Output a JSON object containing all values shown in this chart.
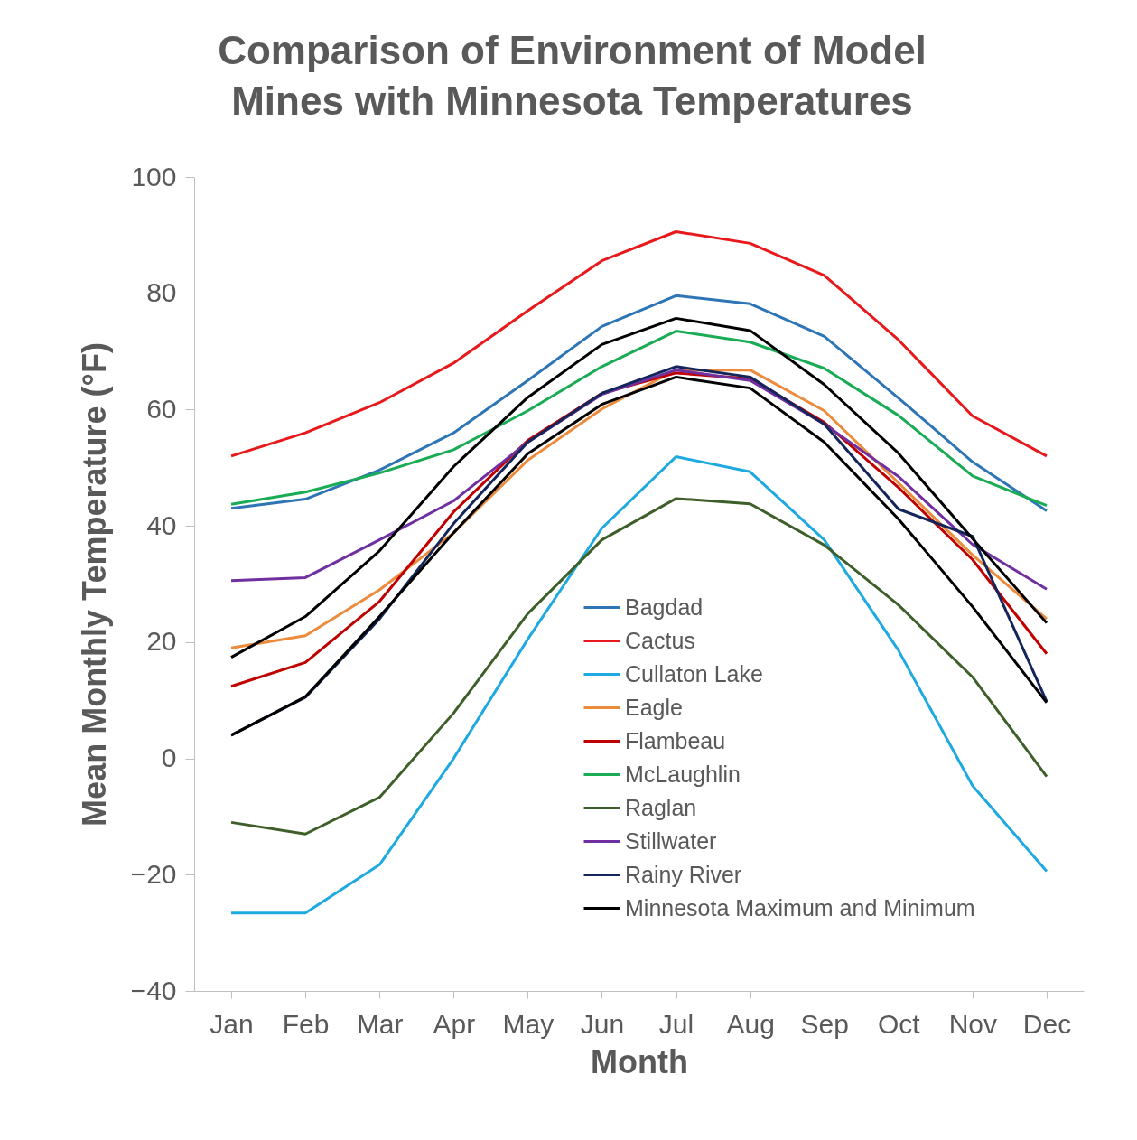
{
  "chart_data": {
    "type": "line",
    "title": "Comparison of Environment of Model\nMines with Minnesota Temperatures",
    "xlabel": "Month",
    "ylabel": "Mean Monthly Temperature (°F)",
    "categories": [
      "Jan",
      "Feb",
      "Mar",
      "Apr",
      "May",
      "Jun",
      "Jul",
      "Aug",
      "Sep",
      "Oct",
      "Nov",
      "Dec"
    ],
    "ylim": [
      -40,
      100
    ],
    "yticks": [
      -40,
      -20,
      0,
      20,
      40,
      60,
      80,
      100
    ],
    "grid": false,
    "legend": "bottom right",
    "marker": "none",
    "line_style": "solid",
    "series": [
      {
        "name": "Bagdad",
        "color": "#2e75b6",
        "values": [
          43,
          44.6,
          49.6,
          56,
          65,
          74.3,
          79.6,
          78.2,
          72.6,
          62,
          51,
          42.6
        ]
      },
      {
        "name": "Cactus",
        "color": "#e8191c",
        "values": [
          52,
          56,
          61.2,
          68,
          77,
          85.6,
          90.6,
          88.6,
          83.1,
          72,
          58.9,
          52
        ]
      },
      {
        "name": "Cullaton Lake",
        "color": "#1fa9e1",
        "values": [
          -26.6,
          -26.6,
          -18.3,
          0,
          20.5,
          39.6,
          51.9,
          49.3,
          37.6,
          18.6,
          -4.7,
          -19.4
        ]
      },
      {
        "name": "Eagle",
        "color": "#ed8b3c",
        "values": [
          19,
          21.1,
          29,
          38.8,
          51.3,
          60.1,
          66.8,
          66.8,
          59.8,
          47.4,
          35,
          24
        ]
      },
      {
        "name": "Flambeau",
        "color": "#c00000",
        "values": [
          12.4,
          16.5,
          27,
          42.4,
          54.7,
          62.8,
          66.3,
          65.3,
          57.8,
          46.6,
          34.2,
          18
        ]
      },
      {
        "name": "McLaughlin",
        "color": "#1aab55",
        "values": [
          43.7,
          45.8,
          49.1,
          53.1,
          59.8,
          67.4,
          73.5,
          71.6,
          67.1,
          59,
          48.6,
          43.5
        ]
      },
      {
        "name": "Raglan",
        "color": "#3e5f2a",
        "values": [
          -11,
          -13,
          -6.7,
          7.8,
          24.9,
          37.6,
          44.7,
          43.8,
          36.7,
          26.4,
          14,
          -3.1
        ]
      },
      {
        "name": "Stillwater",
        "color": "#7030a0",
        "values": [
          30.6,
          31.1,
          37.6,
          44.3,
          54.4,
          62.6,
          66.8,
          65,
          57.5,
          48.5,
          36.8,
          29.1
        ]
      },
      {
        "name": "Rainy River",
        "color": "#13255a",
        "values": [
          4,
          10.5,
          24,
          40.4,
          54.4,
          62.8,
          67.4,
          65.6,
          57.5,
          42.9,
          38.2,
          9.8
        ]
      },
      {
        "name": "Minnesota Maximum and Minimum",
        "color": "#000000",
        "values": [
          17.4,
          24.4,
          35.7,
          50.2,
          62.1,
          71.2,
          75.7,
          73.6,
          64.3,
          52.5,
          37.8,
          23.3
        ]
      },
      {
        "color": "#000000",
        "values": [
          4,
          10.6,
          24.4,
          38.8,
          52.4,
          60.9,
          65.6,
          63.7,
          54.4,
          41.2,
          26.1,
          9.6
        ]
      }
    ]
  }
}
